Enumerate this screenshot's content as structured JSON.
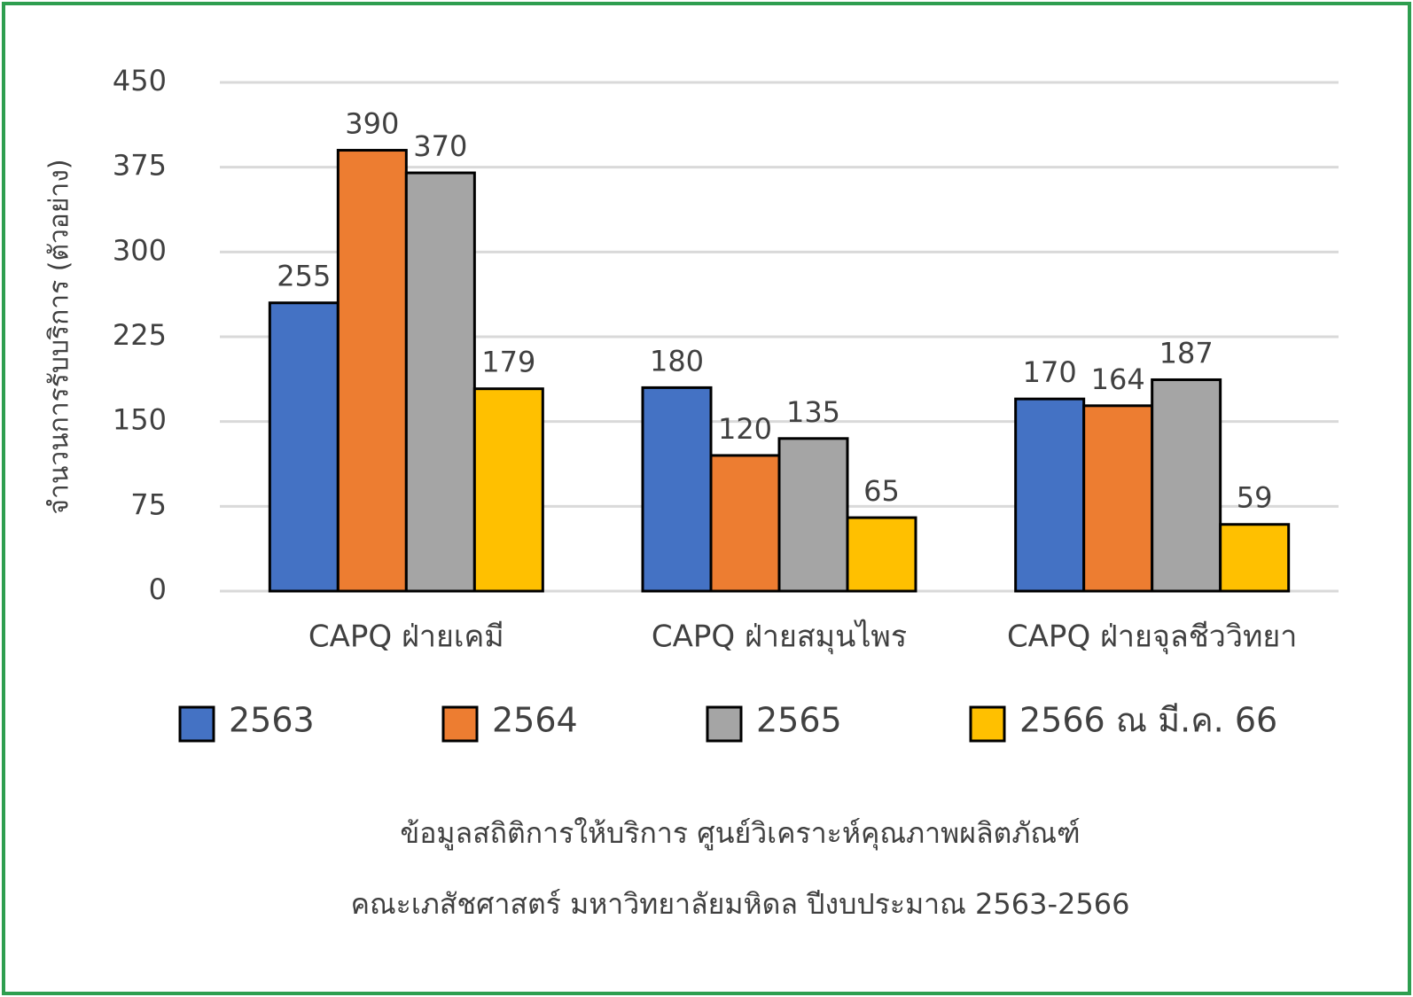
{
  "chart_data": {
    "type": "bar",
    "ylabel": "จำนวนการรับบริการ (ตัวอย่าง)",
    "categories": [
      "CAPQ ฝ่ายเคมี",
      "CAPQ ฝ่ายสมุนไพร",
      "CAPQ ฝ่ายจุลชีววิทยา"
    ],
    "series": [
      {
        "name": "2563",
        "color": "#4472c4",
        "values": [
          255,
          180,
          170
        ]
      },
      {
        "name": "2564",
        "color": "#ed7d31",
        "values": [
          390,
          120,
          164
        ]
      },
      {
        "name": "2565",
        "color": "#a5a5a5",
        "values": [
          370,
          135,
          187
        ]
      },
      {
        "name": "2566 ณ มี.ค. 66",
        "color": "#ffc000",
        "values": [
          179,
          65,
          59
        ]
      }
    ],
    "ylim": [
      0,
      450
    ],
    "yticks": [
      0,
      75,
      150,
      225,
      300,
      375,
      450
    ],
    "grid": true,
    "legend": "bottom",
    "caption": [
      "ข้อมูลสถิติการให้บริการ ศูนย์วิเคราะห์คุณภาพผลิตภัณฑ์",
      "คณะเภสัชศาสตร์ มหาวิทยาลัยมหิดล ปีงบประมาณ 2563-2566"
    ]
  }
}
